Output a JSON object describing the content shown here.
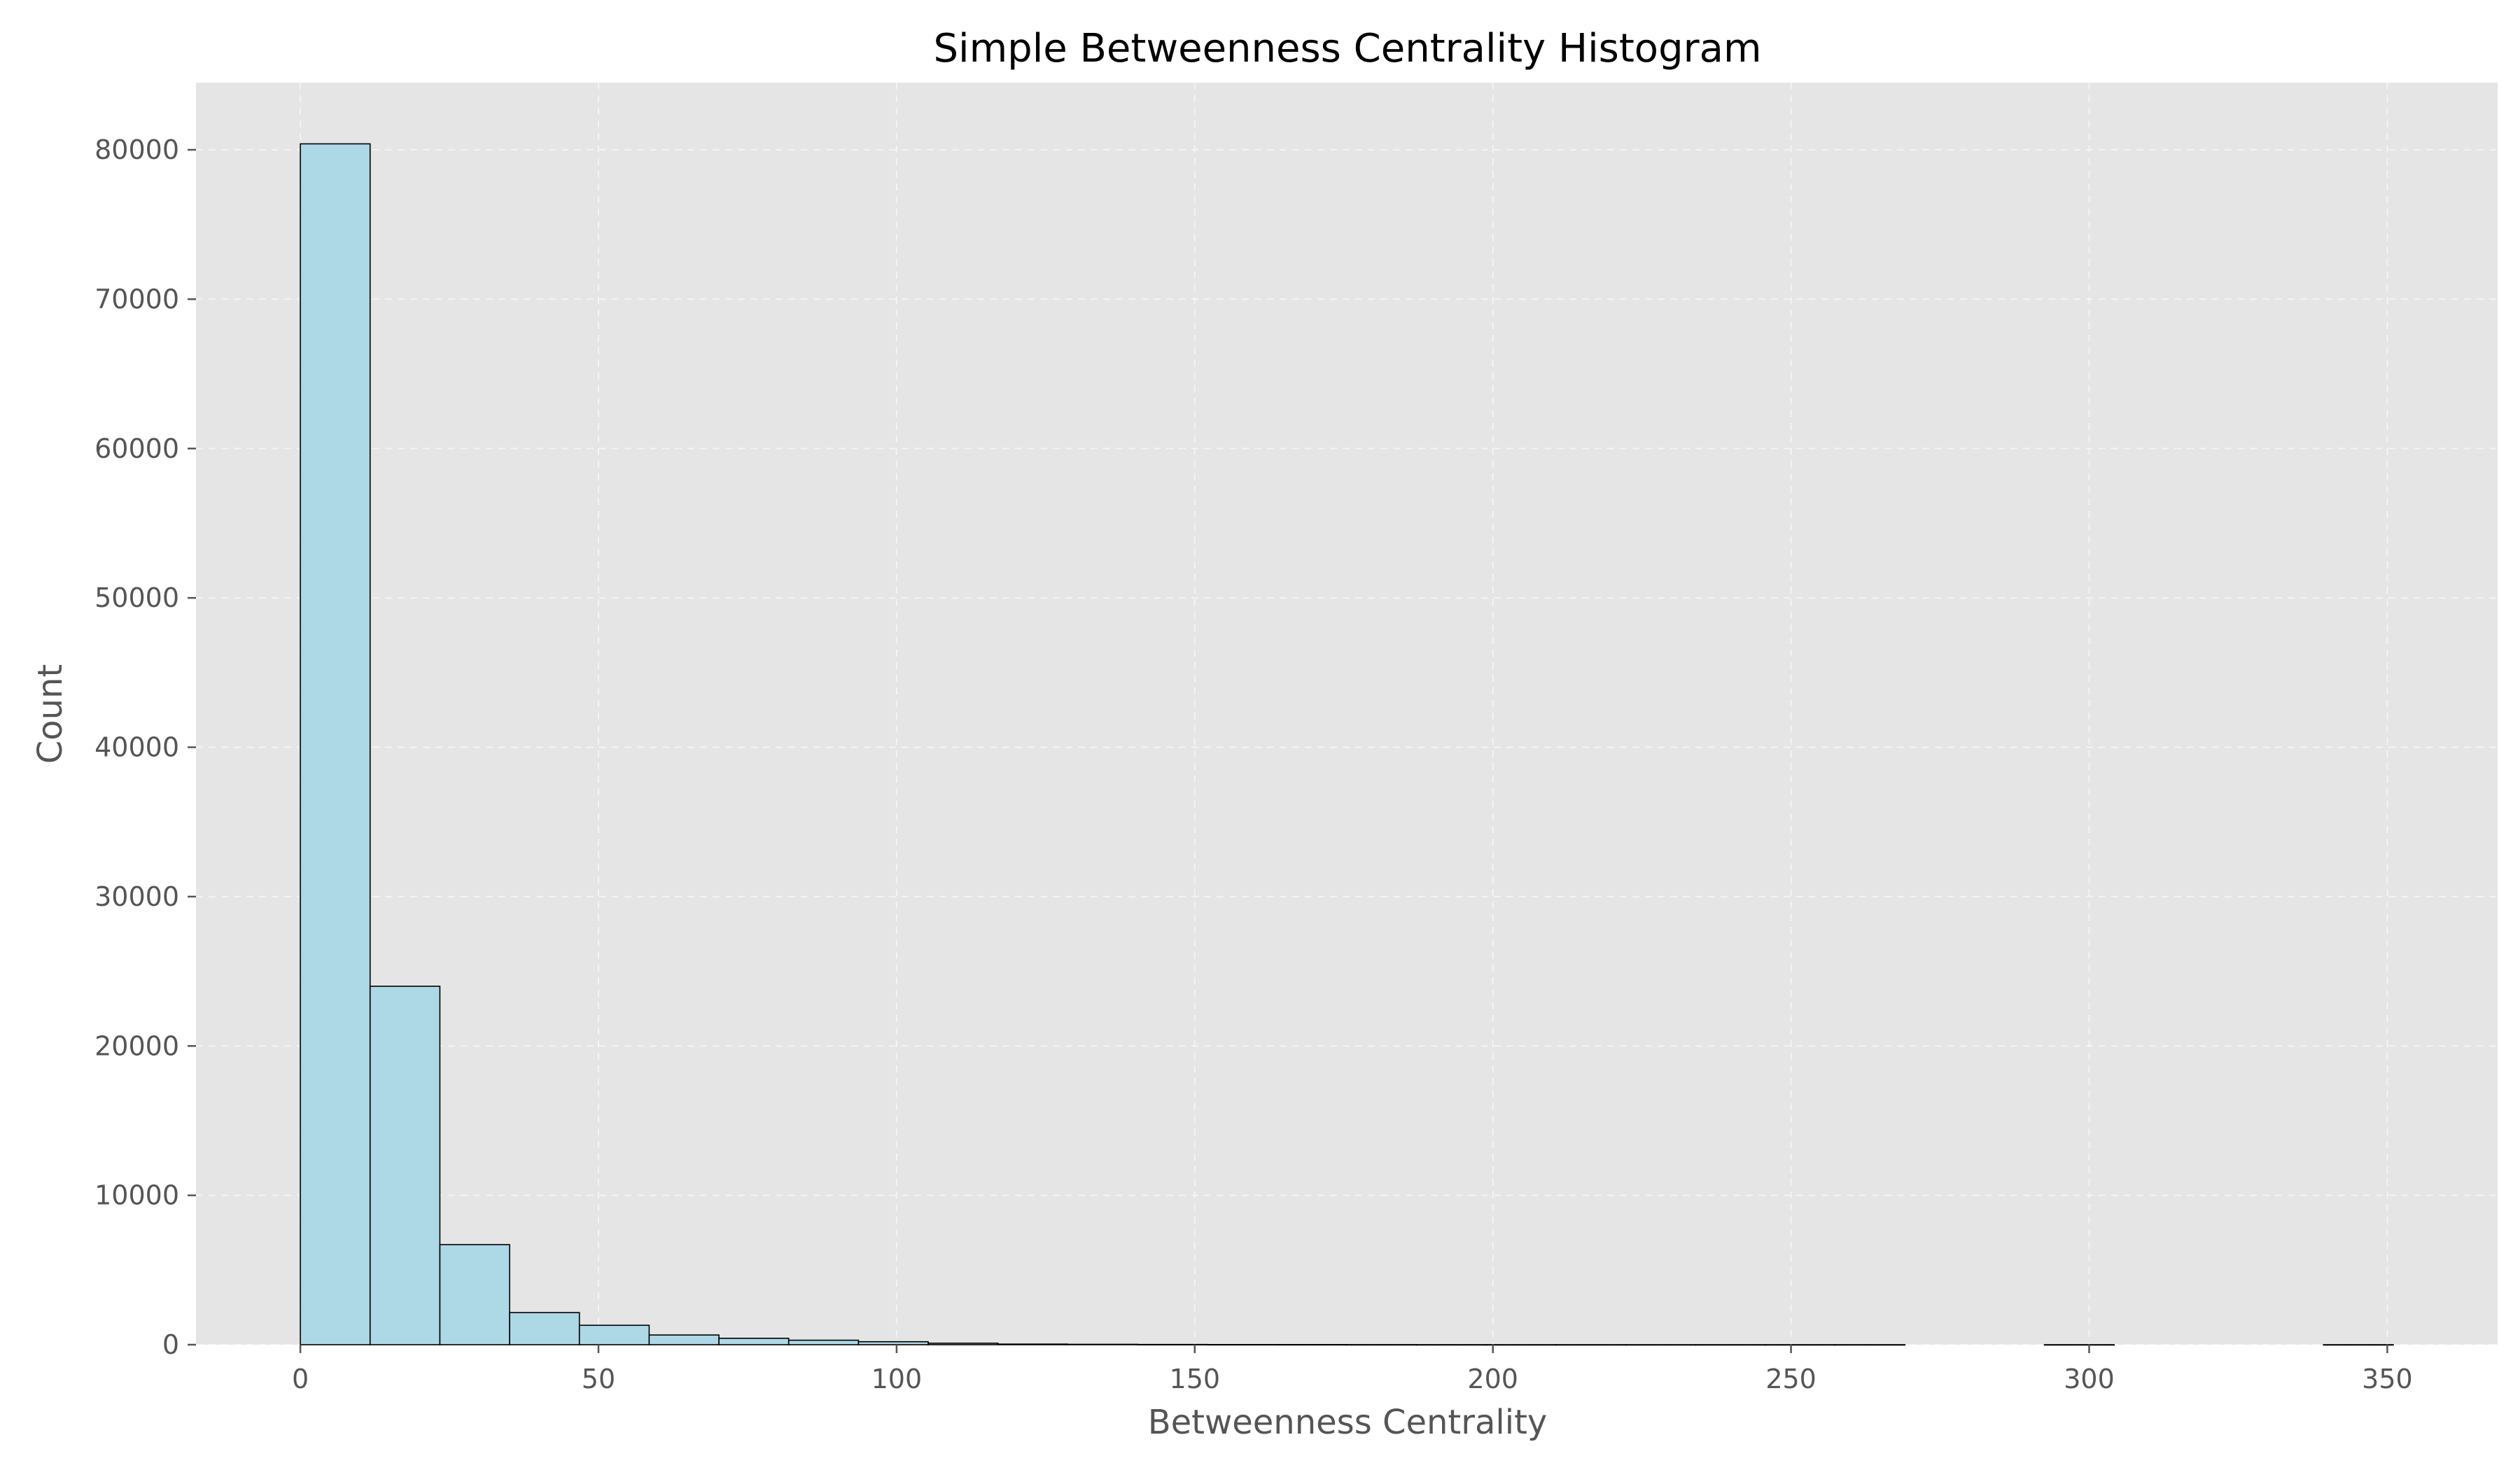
{
  "chart_data": {
    "type": "bar",
    "title": "Simple Betweenness Centrality Histogram",
    "xlabel": "Betweenness Centrality",
    "ylabel": "Count",
    "bin_edges": [
      0,
      11.7,
      23.4,
      35.1,
      46.8,
      58.5,
      70.2,
      81.9,
      93.6,
      105.3,
      117.0,
      128.7,
      140.4,
      152.1,
      163.8,
      175.5,
      187.2,
      198.9,
      210.6,
      222.3,
      234.0,
      245.7,
      257.4,
      269.1,
      280.8,
      292.5,
      304.2,
      315.9,
      327.6,
      339.3,
      351.0
    ],
    "values": [
      80400,
      24000,
      6700,
      2150,
      1300,
      650,
      430,
      300,
      200,
      100,
      40,
      25,
      15,
      10,
      8,
      5,
      3,
      2,
      2,
      1,
      1,
      1,
      1,
      0,
      0,
      1,
      0,
      0,
      0,
      1
    ],
    "xlim": [
      -17.5,
      368.5
    ],
    "ylim": [
      0,
      84500
    ],
    "xticks": [
      0,
      50,
      100,
      150,
      200,
      250,
      300,
      350
    ],
    "yticks": [
      0,
      10000,
      20000,
      30000,
      40000,
      50000,
      60000,
      70000,
      80000
    ],
    "grid": true,
    "colors": {
      "bar_fill": "#add8e6",
      "bar_edge": "#000000",
      "plot_background": "#e5e5e5",
      "grid": "#ffffff",
      "text": "#555555",
      "title": "#000000"
    }
  }
}
